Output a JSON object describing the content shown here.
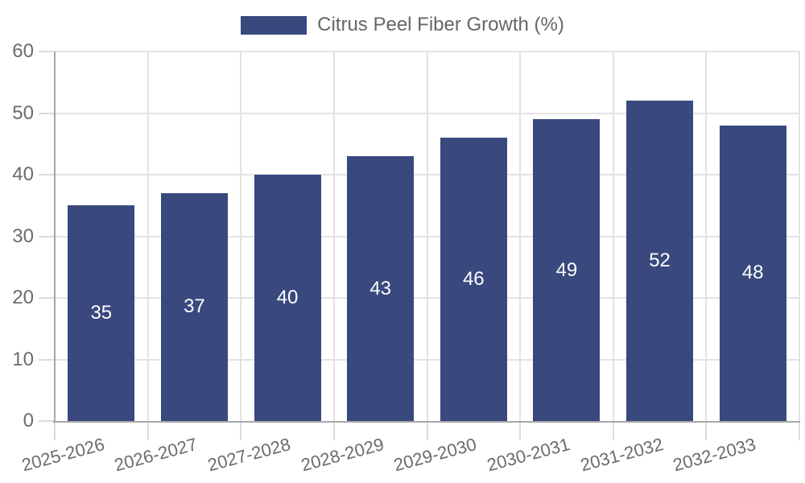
{
  "chart_data": {
    "type": "bar",
    "legend_label": "Citrus Peel Fiber Growth (%)",
    "legend_position": "top-center",
    "categories": [
      "2025-2026",
      "2026-2027",
      "2027-2028",
      "2028-2029",
      "2029-2030",
      "2030-2031",
      "2031-2032",
      "2032-2033"
    ],
    "values": [
      35,
      37,
      40,
      43,
      46,
      49,
      52,
      48
    ],
    "bar_value_labels": [
      "35",
      "37",
      "40",
      "43",
      "46",
      "49",
      "52",
      "48"
    ],
    "xlabel": "",
    "ylabel": "",
    "ylim": [
      0,
      60
    ],
    "yticks": [
      0,
      10,
      20,
      30,
      40,
      50,
      60
    ],
    "grid": true,
    "x_label_rotation_deg": -15,
    "colors": {
      "bar": "#39497E",
      "bar_value_text": "#FFFFFF",
      "axis_text": "#6B6B6B",
      "legend_text": "#666666",
      "grid_line": "#E3E3E3",
      "tick_mark": "#DCDCDC",
      "axis_line": "#A8A8A8",
      "background": "#FFFFFF"
    }
  }
}
